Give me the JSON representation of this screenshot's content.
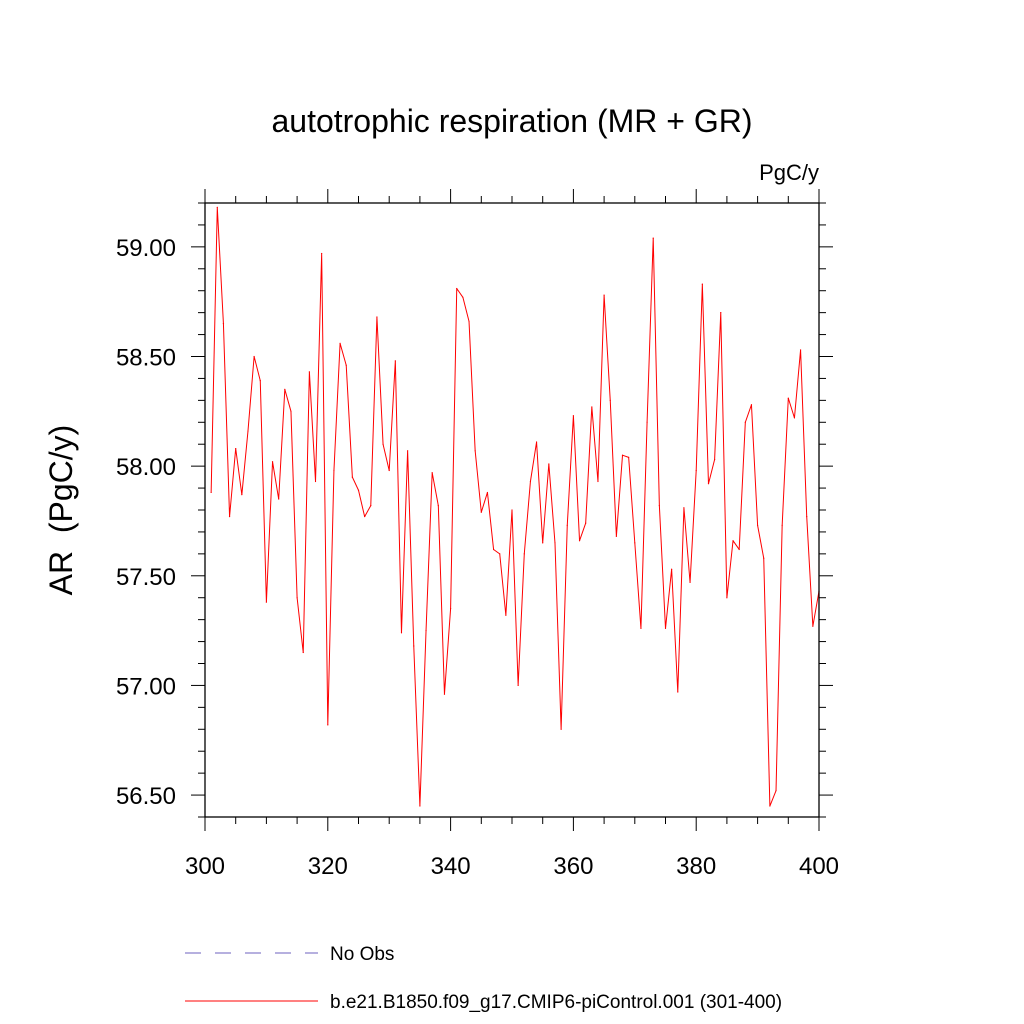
{
  "chart_data": {
    "type": "line",
    "title": "autotrophic respiration (MR + GR)",
    "units_label": "PgC/y",
    "ylabel": "AR  (PgC/y)",
    "xlabel": "",
    "xlim": [
      300,
      400
    ],
    "ylim": [
      56.4,
      59.2
    ],
    "x_ticks": [
      300,
      320,
      340,
      360,
      380,
      400
    ],
    "x_tick_labels": [
      "300",
      "320",
      "340",
      "360",
      "380",
      "400"
    ],
    "y_ticks": [
      56.5,
      57.0,
      57.5,
      58.0,
      58.5,
      59.0
    ],
    "y_tick_labels": [
      "56.50",
      "57.00",
      "57.50",
      "58.00",
      "58.50",
      "59.00"
    ],
    "legend": [
      {
        "label": "No Obs",
        "style": "dashed",
        "color": "#8a80cc"
      },
      {
        "label": "b.e21.B1850.f09_g17.CMIP6-piControl.001 (301-400)",
        "style": "solid",
        "color": "#ff0000"
      }
    ],
    "series": [
      {
        "name": "b.e21.B1850.f09_g17.CMIP6-piControl.001 (301-400)",
        "color": "#ff0000",
        "x": [
          301,
          302,
          303,
          304,
          305,
          306,
          307,
          308,
          309,
          310,
          311,
          312,
          313,
          314,
          315,
          316,
          317,
          318,
          319,
          320,
          321,
          322,
          323,
          324,
          325,
          326,
          327,
          328,
          329,
          330,
          331,
          332,
          333,
          334,
          335,
          336,
          337,
          338,
          339,
          340,
          341,
          342,
          343,
          344,
          345,
          346,
          347,
          348,
          349,
          350,
          351,
          352,
          353,
          354,
          355,
          356,
          357,
          358,
          359,
          360,
          361,
          362,
          363,
          364,
          365,
          366,
          367,
          368,
          369,
          370,
          371,
          372,
          373,
          374,
          375,
          376,
          377,
          378,
          379,
          380,
          381,
          382,
          383,
          384,
          385,
          386,
          387,
          388,
          389,
          390,
          391,
          392,
          393,
          394,
          395,
          396,
          397,
          398,
          399,
          400
        ],
        "values": [
          57.88,
          59.18,
          58.65,
          57.77,
          58.08,
          57.87,
          58.16,
          58.5,
          58.39,
          57.38,
          58.02,
          57.85,
          58.35,
          58.25,
          57.4,
          57.15,
          58.43,
          57.93,
          58.97,
          56.82,
          57.98,
          58.56,
          58.46,
          57.95,
          57.89,
          57.77,
          57.82,
          58.68,
          58.1,
          57.98,
          58.48,
          57.24,
          58.07,
          57.18,
          56.45,
          57.25,
          57.97,
          57.82,
          56.96,
          57.35,
          58.81,
          58.77,
          58.66,
          58.07,
          57.79,
          57.88,
          57.62,
          57.6,
          57.32,
          57.8,
          57.0,
          57.6,
          57.93,
          58.11,
          57.65,
          58.01,
          57.65,
          56.8,
          57.73,
          58.23,
          57.66,
          57.74,
          58.27,
          57.93,
          58.78,
          58.3,
          57.68,
          58.05,
          58.04,
          57.65,
          57.26,
          58.2,
          59.04,
          57.82,
          57.26,
          57.53,
          56.97,
          57.81,
          57.47,
          57.98,
          58.83,
          57.92,
          58.03,
          58.7,
          57.4,
          57.66,
          57.62,
          58.2,
          58.28,
          57.73,
          57.58,
          56.45,
          56.52,
          57.73,
          58.31,
          58.22,
          58.53,
          57.77,
          57.27,
          57.43
        ]
      }
    ]
  }
}
